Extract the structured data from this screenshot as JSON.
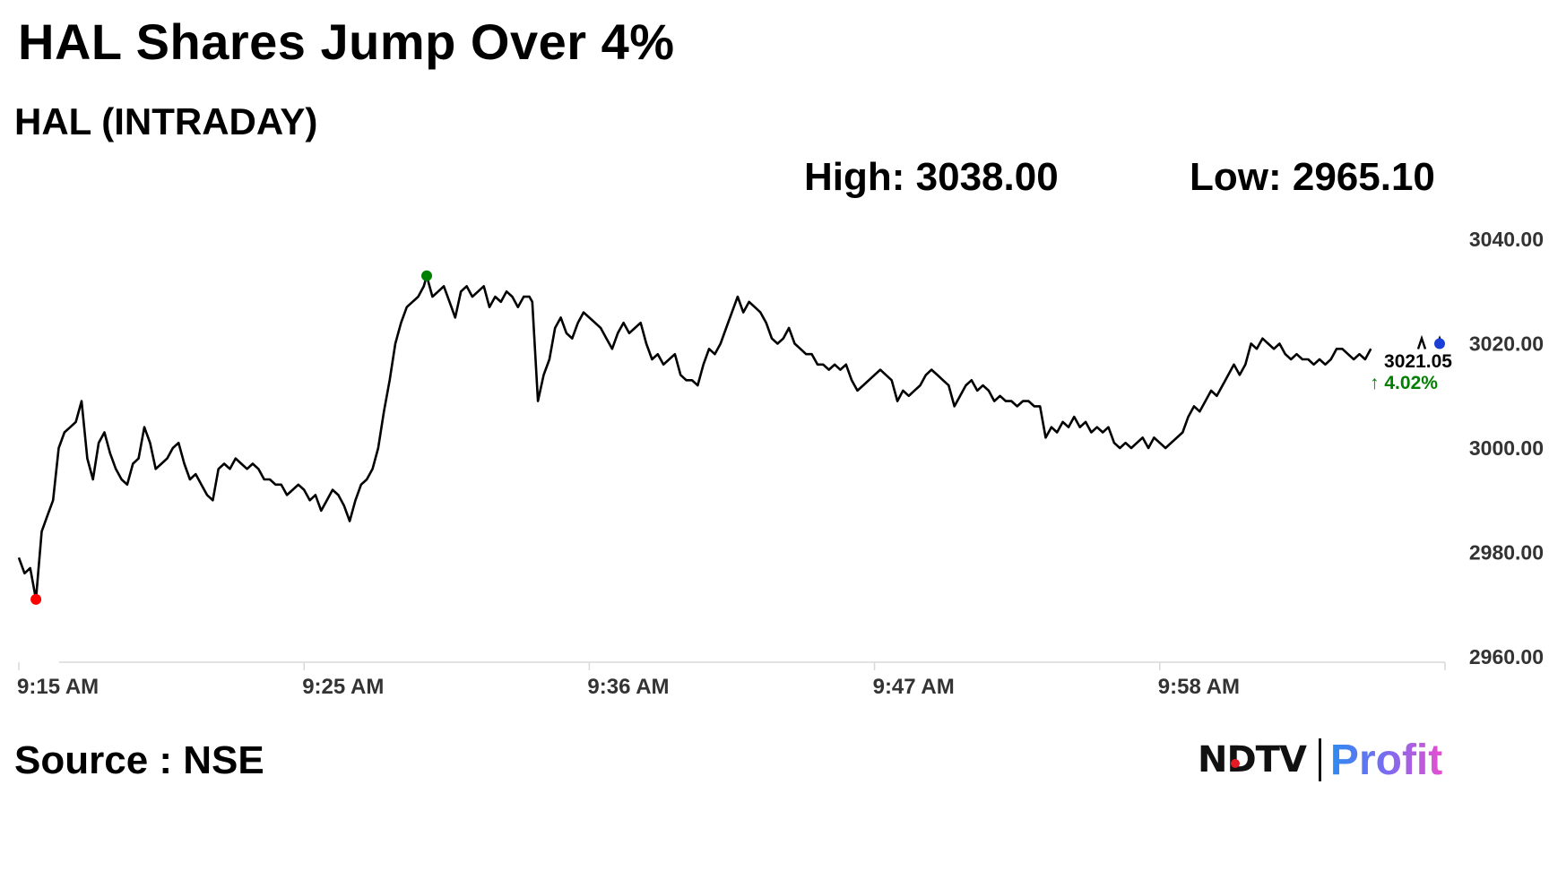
{
  "headline": "HAL Shares Jump Over 4%",
  "subtitle": "HAL (INTRADAY)",
  "stats": {
    "high": "High: 3038.00",
    "low": "Low: 2965.10"
  },
  "source": "Source : NSE",
  "logo": {
    "brand": "NDTV",
    "product": "Profit"
  },
  "chart_data": {
    "type": "line",
    "title": "HAL (INTRADAY)",
    "ylim": [
      2960,
      3040
    ],
    "yticks": [
      "3040.00",
      "3020.00",
      "3000.00",
      "2980.00",
      "2960.00"
    ],
    "xticks": [
      "9:15 AM",
      "9:25 AM",
      "9:36 AM",
      "9:47 AM",
      "9:58 AM"
    ],
    "grid": false,
    "line_color": "#000000",
    "high_marker_color": "#008000",
    "low_marker_color": "#ff0000",
    "last": {
      "value": "3021.05",
      "change": "↑ 4.02%",
      "change_color": "#008000"
    },
    "high_point": {
      "x": 14.3,
      "y": 3033
    },
    "low_point": {
      "x": 0.6,
      "y": 2971
    },
    "series": [
      {
        "values": [
          [
            0.0,
            2979
          ],
          [
            0.2,
            2976
          ],
          [
            0.4,
            2977
          ],
          [
            0.6,
            2971
          ],
          [
            0.8,
            2984
          ],
          [
            1.0,
            2987
          ],
          [
            1.2,
            2990
          ],
          [
            1.4,
            3000
          ],
          [
            1.6,
            3003
          ],
          [
            1.8,
            3004
          ],
          [
            2.0,
            3005
          ],
          [
            2.2,
            3009
          ],
          [
            2.4,
            2998
          ],
          [
            2.6,
            2994
          ],
          [
            2.8,
            3001
          ],
          [
            3.0,
            3003
          ],
          [
            3.2,
            2999
          ],
          [
            3.4,
            2996
          ],
          [
            3.6,
            2994
          ],
          [
            3.8,
            2993
          ],
          [
            4.0,
            2997
          ],
          [
            4.2,
            2998
          ],
          [
            4.4,
            3004
          ],
          [
            4.6,
            3001
          ],
          [
            4.8,
            2996
          ],
          [
            5.0,
            2997
          ],
          [
            5.2,
            2998
          ],
          [
            5.4,
            3000
          ],
          [
            5.6,
            3001
          ],
          [
            5.8,
            2997
          ],
          [
            6.0,
            2994
          ],
          [
            6.2,
            2995
          ],
          [
            6.4,
            2993
          ],
          [
            6.6,
            2991
          ],
          [
            6.8,
            2990
          ],
          [
            7.0,
            2996
          ],
          [
            7.2,
            2997
          ],
          [
            7.4,
            2996
          ],
          [
            7.6,
            2998
          ],
          [
            7.8,
            2997
          ],
          [
            8.0,
            2996
          ],
          [
            8.2,
            2997
          ],
          [
            8.4,
            2996
          ],
          [
            8.6,
            2994
          ],
          [
            8.8,
            2994
          ],
          [
            9.0,
            2993
          ],
          [
            9.2,
            2993
          ],
          [
            9.4,
            2991
          ],
          [
            9.6,
            2992
          ],
          [
            9.8,
            2993
          ],
          [
            10.0,
            2992
          ],
          [
            10.2,
            2990
          ],
          [
            10.4,
            2991
          ],
          [
            10.6,
            2988
          ],
          [
            10.8,
            2990
          ],
          [
            11.0,
            2992
          ],
          [
            11.2,
            2991
          ],
          [
            11.4,
            2989
          ],
          [
            11.6,
            2986
          ],
          [
            11.8,
            2990
          ],
          [
            12.0,
            2993
          ],
          [
            12.2,
            2994
          ],
          [
            12.4,
            2996
          ],
          [
            12.6,
            3000
          ],
          [
            12.8,
            3007
          ],
          [
            13.0,
            3013
          ],
          [
            13.2,
            3020
          ],
          [
            13.4,
            3024
          ],
          [
            13.6,
            3027
          ],
          [
            13.8,
            3028
          ],
          [
            14.0,
            3029
          ],
          [
            14.2,
            3031
          ],
          [
            14.3,
            3033
          ],
          [
            14.5,
            3029
          ],
          [
            14.7,
            3030
          ],
          [
            14.9,
            3031
          ],
          [
            15.1,
            3028
          ],
          [
            15.3,
            3025
          ],
          [
            15.5,
            3030
          ],
          [
            15.7,
            3031
          ],
          [
            15.9,
            3029
          ],
          [
            16.1,
            3030
          ],
          [
            16.3,
            3031
          ],
          [
            16.5,
            3027
          ],
          [
            16.7,
            3029
          ],
          [
            16.9,
            3028
          ],
          [
            17.1,
            3030
          ],
          [
            17.3,
            3029
          ],
          [
            17.5,
            3027
          ],
          [
            17.7,
            3029
          ],
          [
            17.9,
            3029
          ],
          [
            18.0,
            3028
          ],
          [
            18.2,
            3009
          ],
          [
            18.4,
            3014
          ],
          [
            18.6,
            3017
          ],
          [
            18.8,
            3023
          ],
          [
            19.0,
            3025
          ],
          [
            19.2,
            3022
          ],
          [
            19.4,
            3021
          ],
          [
            19.6,
            3024
          ],
          [
            19.8,
            3026
          ],
          [
            20.0,
            3025
          ],
          [
            20.2,
            3024
          ],
          [
            20.4,
            3023
          ],
          [
            20.6,
            3021
          ],
          [
            20.8,
            3019
          ],
          [
            21.0,
            3022
          ],
          [
            21.2,
            3024
          ],
          [
            21.4,
            3022
          ],
          [
            21.6,
            3023
          ],
          [
            21.8,
            3024
          ],
          [
            22.0,
            3020
          ],
          [
            22.2,
            3017
          ],
          [
            22.4,
            3018
          ],
          [
            22.6,
            3016
          ],
          [
            22.8,
            3017
          ],
          [
            23.0,
            3018
          ],
          [
            23.2,
            3014
          ],
          [
            23.4,
            3013
          ],
          [
            23.6,
            3013
          ],
          [
            23.8,
            3012
          ],
          [
            24.0,
            3016
          ],
          [
            24.2,
            3019
          ],
          [
            24.4,
            3018
          ],
          [
            24.6,
            3020
          ],
          [
            24.8,
            3023
          ],
          [
            25.0,
            3026
          ],
          [
            25.2,
            3029
          ],
          [
            25.4,
            3026
          ],
          [
            25.6,
            3028
          ],
          [
            25.8,
            3027
          ],
          [
            26.0,
            3026
          ],
          [
            26.2,
            3024
          ],
          [
            26.4,
            3021
          ],
          [
            26.6,
            3020
          ],
          [
            26.8,
            3021
          ],
          [
            27.0,
            3023
          ],
          [
            27.2,
            3020
          ],
          [
            27.4,
            3019
          ],
          [
            27.6,
            3018
          ],
          [
            27.8,
            3018
          ],
          [
            28.0,
            3016
          ],
          [
            28.2,
            3016
          ],
          [
            28.4,
            3015
          ],
          [
            28.6,
            3016
          ],
          [
            28.8,
            3015
          ],
          [
            29.0,
            3016
          ],
          [
            29.2,
            3013
          ],
          [
            29.4,
            3011
          ],
          [
            29.6,
            3012
          ],
          [
            29.8,
            3013
          ],
          [
            30.0,
            3014
          ],
          [
            30.2,
            3015
          ],
          [
            30.4,
            3014
          ],
          [
            30.6,
            3013
          ],
          [
            30.8,
            3009
          ],
          [
            31.0,
            3011
          ],
          [
            31.2,
            3010
          ],
          [
            31.4,
            3011
          ],
          [
            31.6,
            3012
          ],
          [
            31.8,
            3014
          ],
          [
            32.0,
            3015
          ],
          [
            32.2,
            3014
          ],
          [
            32.4,
            3013
          ],
          [
            32.6,
            3012
          ],
          [
            32.8,
            3008
          ],
          [
            33.0,
            3010
          ],
          [
            33.2,
            3012
          ],
          [
            33.4,
            3013
          ],
          [
            33.6,
            3011
          ],
          [
            33.8,
            3012
          ],
          [
            34.0,
            3011
          ],
          [
            34.2,
            3009
          ],
          [
            34.4,
            3010
          ],
          [
            34.6,
            3009
          ],
          [
            34.8,
            3009
          ],
          [
            35.0,
            3008
          ],
          [
            35.2,
            3009
          ],
          [
            35.4,
            3009
          ],
          [
            35.6,
            3008
          ],
          [
            35.8,
            3008
          ],
          [
            36.0,
            3002
          ],
          [
            36.2,
            3004
          ],
          [
            36.4,
            3003
          ],
          [
            36.6,
            3005
          ],
          [
            36.8,
            3004
          ],
          [
            37.0,
            3006
          ],
          [
            37.2,
            3004
          ],
          [
            37.4,
            3005
          ],
          [
            37.6,
            3003
          ],
          [
            37.8,
            3004
          ],
          [
            38.0,
            3003
          ],
          [
            38.2,
            3004
          ],
          [
            38.4,
            3001
          ],
          [
            38.6,
            3000
          ],
          [
            38.8,
            3001
          ],
          [
            39.0,
            3000
          ],
          [
            39.2,
            3001
          ],
          [
            39.4,
            3002
          ],
          [
            39.6,
            3000
          ],
          [
            39.8,
            3002
          ],
          [
            40.0,
            3001
          ],
          [
            40.2,
            3000
          ],
          [
            40.4,
            3001
          ],
          [
            40.6,
            3002
          ],
          [
            40.8,
            3003
          ],
          [
            41.0,
            3006
          ],
          [
            41.2,
            3008
          ],
          [
            41.4,
            3007
          ],
          [
            41.6,
            3009
          ],
          [
            41.8,
            3011
          ],
          [
            42.0,
            3010
          ],
          [
            42.2,
            3012
          ],
          [
            42.4,
            3014
          ],
          [
            42.6,
            3016
          ],
          [
            42.8,
            3014
          ],
          [
            43.0,
            3016
          ],
          [
            43.2,
            3020
          ],
          [
            43.4,
            3019
          ],
          [
            43.6,
            3021
          ],
          [
            43.8,
            3020
          ],
          [
            44.0,
            3019
          ],
          [
            44.2,
            3020
          ],
          [
            44.4,
            3018
          ],
          [
            44.6,
            3017
          ],
          [
            44.8,
            3018
          ],
          [
            45.0,
            3017
          ],
          [
            45.2,
            3017
          ],
          [
            45.4,
            3016
          ],
          [
            45.6,
            3017
          ],
          [
            45.8,
            3016
          ],
          [
            46.0,
            3017
          ],
          [
            46.2,
            3019
          ],
          [
            46.4,
            3019
          ],
          [
            46.6,
            3018
          ],
          [
            46.8,
            3017
          ],
          [
            47.0,
            3018
          ],
          [
            47.2,
            3017
          ],
          [
            47.4,
            3019
          ]
        ]
      }
    ],
    "tail_marker_value": 3020
  }
}
